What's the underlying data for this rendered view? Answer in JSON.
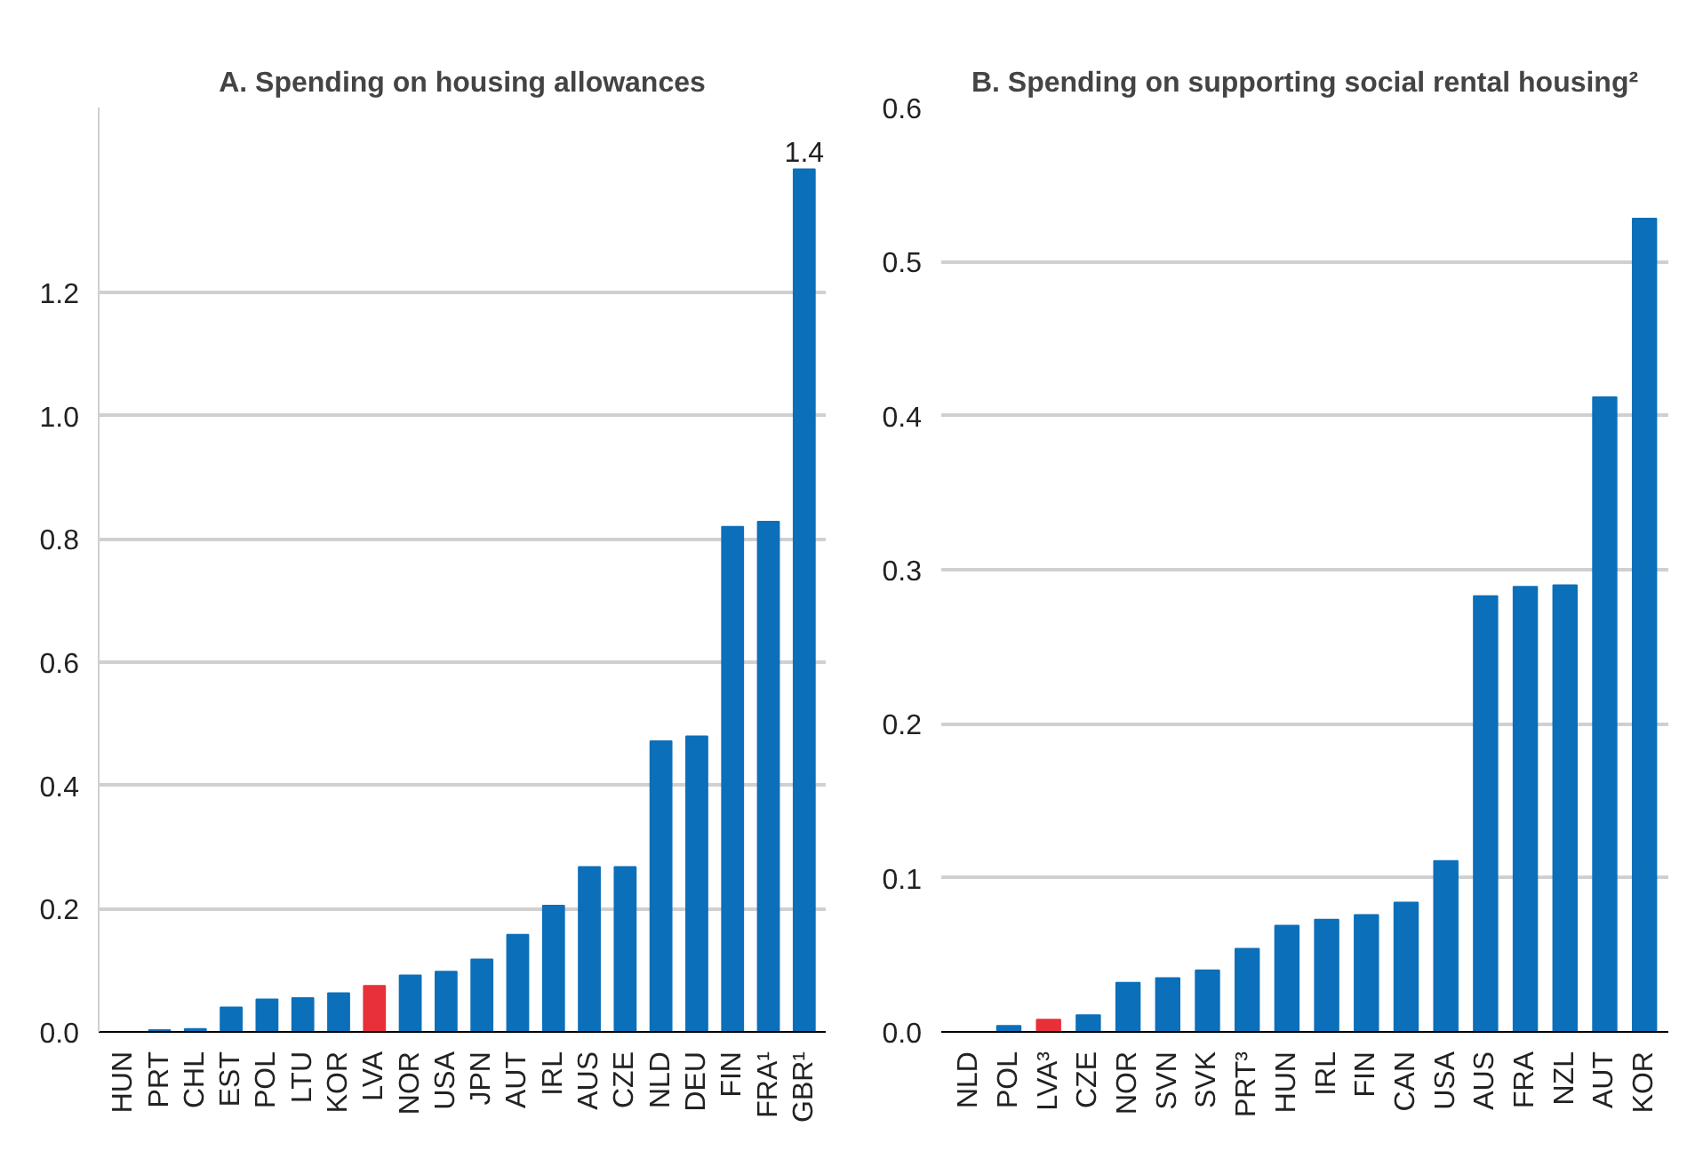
{
  "chart_data": [
    {
      "type": "bar",
      "title": "A. Spending on housing allowances",
      "categories": [
        "HUN",
        "PRT",
        "CHL",
        "EST",
        "POL",
        "LTU",
        "KOR",
        "LVA",
        "NOR",
        "USA",
        "JPN",
        "AUT",
        "IRL",
        "AUS",
        "CZE",
        "NLD",
        "DEU",
        "FIN",
        "FRA¹",
        "GBR¹"
      ],
      "values": [
        0,
        0.003,
        0.005,
        0.04,
        0.053,
        0.055,
        0.063,
        0.075,
        0.092,
        0.098,
        0.118,
        0.158,
        0.205,
        0.268,
        0.268,
        0.472,
        0.48,
        0.82,
        0.828,
        1.4
      ],
      "colors": [
        "#0b6fba",
        "#0b6fba",
        "#0b6fba",
        "#0b6fba",
        "#0b6fba",
        "#0b6fba",
        "#0b6fba",
        "#e8303a",
        "#0b6fba",
        "#0b6fba",
        "#0b6fba",
        "#0b6fba",
        "#0b6fba",
        "#0b6fba",
        "#0b6fba",
        "#0b6fba",
        "#0b6fba",
        "#0b6fba",
        "#0b6fba",
        "#0b6fba"
      ],
      "value_labels": [
        null,
        null,
        null,
        null,
        null,
        null,
        null,
        null,
        null,
        null,
        null,
        null,
        null,
        null,
        null,
        null,
        null,
        null,
        null,
        "1.4"
      ],
      "ylim": [
        0,
        1.5
      ],
      "yticks": [
        {
          "value": 0,
          "label": "0.0"
        },
        {
          "value": 0.2,
          "label": "0.2"
        },
        {
          "value": 0.4,
          "label": "0.4"
        },
        {
          "value": 0.6,
          "label": "0.6"
        },
        {
          "value": 0.8,
          "label": "0.8"
        },
        {
          "value": 1.0,
          "label": "1.0"
        },
        {
          "value": 1.2,
          "label": "1.2"
        }
      ],
      "grid": "y"
    },
    {
      "type": "bar",
      "title": "B. Spending on supporting social rental housing²",
      "categories": [
        "NLD",
        "POL",
        "LVA³",
        "CZE",
        "NOR",
        "SVN",
        "SVK",
        "PRT³",
        "HUN",
        "IRL",
        "FIN",
        "CAN",
        "USA",
        "AUS",
        "FRA",
        "NZL",
        "AUT",
        "KOR"
      ],
      "values": [
        0,
        0.004,
        0.008,
        0.011,
        0.032,
        0.035,
        0.04,
        0.054,
        0.069,
        0.073,
        0.076,
        0.084,
        0.111,
        0.283,
        0.289,
        0.29,
        0.412,
        0.528
      ],
      "colors": [
        "#0b6fba",
        "#0b6fba",
        "#e8303a",
        "#0b6fba",
        "#0b6fba",
        "#0b6fba",
        "#0b6fba",
        "#0b6fba",
        "#0b6fba",
        "#0b6fba",
        "#0b6fba",
        "#0b6fba",
        "#0b6fba",
        "#0b6fba",
        "#0b6fba",
        "#0b6fba",
        "#0b6fba",
        "#0b6fba"
      ],
      "ylim": [
        0,
        0.6
      ],
      "yticks": [
        {
          "value": 0,
          "label": "0.0"
        },
        {
          "value": 0.1,
          "label": "0.1"
        },
        {
          "value": 0.2,
          "label": "0.2"
        },
        {
          "value": 0.3,
          "label": "0.3"
        },
        {
          "value": 0.4,
          "label": "0.4"
        },
        {
          "value": 0.5,
          "label": "0.5"
        },
        {
          "value": 0.6,
          "label": "0.6"
        }
      ],
      "grid": "y"
    }
  ]
}
